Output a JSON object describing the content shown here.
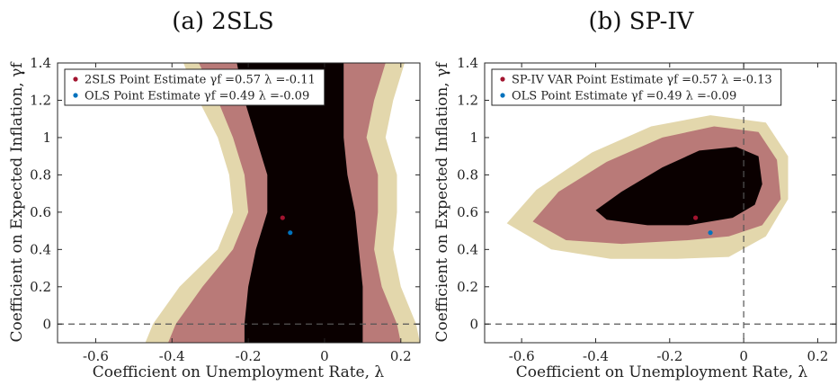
{
  "chart_data": [
    {
      "type": "scatter",
      "title": "(a) 2SLS",
      "xlabel": "Coefficient on Unemployment Rate, λ",
      "ylabel": "Coefficient on Expected Inflation, γf",
      "xlim": [
        -0.7,
        0.25
      ],
      "ylim": [
        -0.1,
        1.4
      ],
      "xticks": [
        -0.6,
        -0.4,
        -0.2,
        0,
        0.2
      ],
      "xtick_labels": [
        "-0.6",
        "-0.4",
        "-0.2",
        "0",
        "0.2"
      ],
      "yticks": [
        0,
        0.2,
        0.4,
        0.6,
        0.8,
        1,
        1.2,
        1.4
      ],
      "ytick_labels": [
        "0",
        "0.2",
        "0.4",
        "0.6",
        "0.8",
        "1",
        "1.2",
        "1.4"
      ],
      "reference_lines": {
        "horizontal_y": 0,
        "vertical_x": null
      },
      "legend_placement": "top-left",
      "region_colors": {
        "inner": "#0a0000",
        "middle": "#b97a78",
        "outer": "#e3d7ac"
      },
      "regions": {
        "inner": {
          "rows": [
            {
              "y": -0.1,
              "left": -0.21,
              "right": 0.1
            },
            {
              "y": 0.0,
              "left": -0.21,
              "right": 0.1
            },
            {
              "y": 0.2,
              "left": -0.2,
              "right": 0.1
            },
            {
              "y": 0.4,
              "left": -0.18,
              "right": 0.09
            },
            {
              "y": 0.6,
              "left": -0.15,
              "right": 0.08
            },
            {
              "y": 0.8,
              "left": -0.15,
              "right": 0.06
            },
            {
              "y": 1.0,
              "left": -0.18,
              "right": 0.05
            },
            {
              "y": 1.2,
              "left": -0.21,
              "right": 0.05
            },
            {
              "y": 1.4,
              "left": -0.23,
              "right": 0.05
            }
          ]
        },
        "middle": {
          "rows": [
            {
              "y": -0.1,
              "left": -0.41,
              "right": 0.2
            },
            {
              "y": 0.0,
              "left": -0.39,
              "right": 0.19
            },
            {
              "y": 0.2,
              "left": -0.32,
              "right": 0.15
            },
            {
              "y": 0.4,
              "left": -0.24,
              "right": 0.13
            },
            {
              "y": 0.6,
              "left": -0.2,
              "right": 0.14
            },
            {
              "y": 0.8,
              "left": -0.21,
              "right": 0.14
            },
            {
              "y": 1.0,
              "left": -0.24,
              "right": 0.11
            },
            {
              "y": 1.2,
              "left": -0.28,
              "right": 0.13
            },
            {
              "y": 1.4,
              "left": -0.33,
              "right": 0.16
            }
          ]
        },
        "outer": {
          "rows": [
            {
              "y": -0.1,
              "left": -0.47,
              "right": 0.25
            },
            {
              "y": 0.0,
              "left": -0.45,
              "right": 0.24
            },
            {
              "y": 0.2,
              "left": -0.38,
              "right": 0.2
            },
            {
              "y": 0.4,
              "left": -0.28,
              "right": 0.18
            },
            {
              "y": 0.6,
              "left": -0.24,
              "right": 0.19
            },
            {
              "y": 0.8,
              "left": -0.25,
              "right": 0.19
            },
            {
              "y": 1.0,
              "left": -0.28,
              "right": 0.16
            },
            {
              "y": 1.2,
              "left": -0.33,
              "right": 0.18
            },
            {
              "y": 1.4,
              "left": -0.37,
              "right": 0.21
            }
          ]
        }
      },
      "series": [
        {
          "name": "2SLS Point Estimate γf =0.57 λ =-0.11",
          "color": "#a2142f",
          "points": [
            {
              "x": -0.11,
              "y": 0.57
            }
          ]
        },
        {
          "name": "OLS Point Estimate γf =0.49 λ =-0.09",
          "color": "#0072bd",
          "points": [
            {
              "x": -0.09,
              "y": 0.49
            }
          ]
        }
      ]
    },
    {
      "type": "scatter",
      "title": "(b) SP-IV",
      "xlabel": "Coefficient on Unemployment Rate, λ",
      "ylabel": "Coefficient on Expected Inflation, γf",
      "xlim": [
        -0.7,
        0.25
      ],
      "ylim": [
        -0.1,
        1.4
      ],
      "xticks": [
        -0.6,
        -0.4,
        -0.2,
        0,
        0.2
      ],
      "xtick_labels": [
        "-0.6",
        "-0.4",
        "-0.2",
        "0",
        "0.2"
      ],
      "yticks": [
        0,
        0.2,
        0.4,
        0.6,
        0.8,
        1,
        1.2,
        1.4
      ],
      "ytick_labels": [
        "0",
        "0.2",
        "0.4",
        "0.6",
        "0.8",
        "1",
        "1.2",
        "1.4"
      ],
      "reference_lines": {
        "horizontal_y": 0,
        "vertical_x": 0
      },
      "legend_placement": "top-left",
      "region_colors": {
        "inner": "#0a0000",
        "middle": "#b97a78",
        "outer": "#e3d7ac"
      },
      "regions": {
        "inner": {
          "outline": [
            {
              "x": -0.4,
              "y": 0.61
            },
            {
              "x": -0.33,
              "y": 0.71
            },
            {
              "x": -0.22,
              "y": 0.84
            },
            {
              "x": -0.12,
              "y": 0.93
            },
            {
              "x": -0.02,
              "y": 0.95
            },
            {
              "x": 0.04,
              "y": 0.9
            },
            {
              "x": 0.05,
              "y": 0.75
            },
            {
              "x": 0.03,
              "y": 0.64
            },
            {
              "x": -0.03,
              "y": 0.57
            },
            {
              "x": -0.15,
              "y": 0.53
            },
            {
              "x": -0.26,
              "y": 0.53
            },
            {
              "x": -0.37,
              "y": 0.56
            }
          ]
        },
        "middle": {
          "outline": [
            {
              "x": -0.57,
              "y": 0.55
            },
            {
              "x": -0.5,
              "y": 0.71
            },
            {
              "x": -0.37,
              "y": 0.87
            },
            {
              "x": -0.22,
              "y": 1.0
            },
            {
              "x": -0.08,
              "y": 1.06
            },
            {
              "x": 0.04,
              "y": 1.03
            },
            {
              "x": 0.09,
              "y": 0.88
            },
            {
              "x": 0.1,
              "y": 0.67
            },
            {
              "x": 0.05,
              "y": 0.53
            },
            {
              "x": -0.04,
              "y": 0.47
            },
            {
              "x": -0.15,
              "y": 0.45
            },
            {
              "x": -0.33,
              "y": 0.43
            },
            {
              "x": -0.48,
              "y": 0.45
            }
          ]
        },
        "outer": {
          "outline": [
            {
              "x": -0.64,
              "y": 0.54
            },
            {
              "x": -0.56,
              "y": 0.72
            },
            {
              "x": -0.41,
              "y": 0.92
            },
            {
              "x": -0.25,
              "y": 1.06
            },
            {
              "x": -0.09,
              "y": 1.12
            },
            {
              "x": 0.06,
              "y": 1.08
            },
            {
              "x": 0.12,
              "y": 0.9
            },
            {
              "x": 0.12,
              "y": 0.67
            },
            {
              "x": 0.06,
              "y": 0.47
            },
            {
              "x": -0.04,
              "y": 0.36
            },
            {
              "x": -0.18,
              "y": 0.35
            },
            {
              "x": -0.36,
              "y": 0.35
            },
            {
              "x": -0.52,
              "y": 0.4
            }
          ]
        }
      },
      "series": [
        {
          "name": "SP-IV VAR Point Estimate γf =0.57 λ =-0.13",
          "color": "#a2142f",
          "points": [
            {
              "x": -0.13,
              "y": 0.57
            }
          ]
        },
        {
          "name": "OLS Point Estimate γf =0.49 λ =-0.09",
          "color": "#0072bd",
          "points": [
            {
              "x": -0.09,
              "y": 0.49
            }
          ]
        }
      ]
    }
  ]
}
